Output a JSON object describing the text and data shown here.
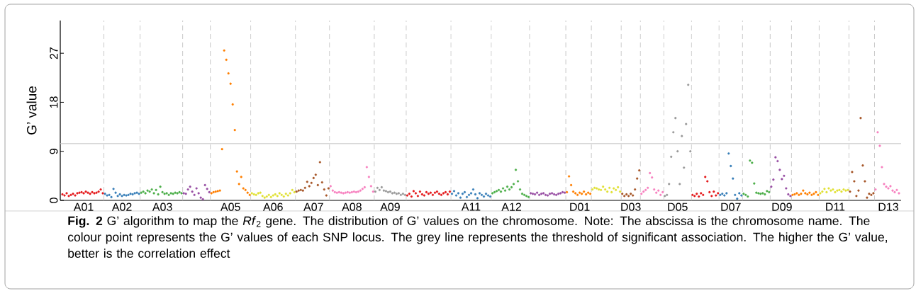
{
  "chart_data": {
    "type": "scatter",
    "ylabel": "G’ value",
    "grid": false,
    "ylim": [
      0,
      33
    ],
    "yticks": [
      0,
      9,
      18,
      27
    ],
    "categories": [
      null,
      null,
      null,
      null,
      null,
      null,
      null,
      null,
      null,
      null,
      "A01",
      null,
      null,
      null,
      null,
      null,
      null,
      null,
      null,
      null,
      null,
      null,
      null,
      null,
      null,
      null,
      null,
      null,
      "A02",
      null,
      null,
      null,
      null,
      null,
      null,
      null,
      null,
      null,
      null,
      null,
      null,
      null,
      null,
      null,
      null,
      null,
      null,
      "A03",
      null,
      null,
      null,
      null,
      null,
      null,
      null,
      null,
      null,
      null,
      null,
      null,
      null,
      null,
      null,
      null,
      null,
      null,
      null,
      null,
      null,
      null,
      null,
      null,
      null,
      null,
      null,
      null,
      null,
      null,
      null,
      "A05",
      null,
      null,
      null,
      null,
      null,
      null,
      null,
      null,
      null,
      null,
      null,
      null,
      null,
      null,
      null,
      null,
      null,
      null,
      null,
      "A06",
      null,
      null,
      null,
      null,
      null,
      null,
      null,
      null,
      null,
      null,
      null,
      null,
      null,
      null,
      null,
      null,
      null,
      null,
      "A07",
      null,
      null,
      null,
      null,
      null,
      null,
      null,
      null,
      null,
      null,
      null,
      null,
      null,
      null,
      null,
      null,
      null,
      "A08",
      null,
      null,
      null,
      null,
      null,
      null,
      null,
      null,
      null,
      null,
      null,
      null,
      null,
      null,
      null,
      null,
      null,
      "A09",
      null,
      null,
      null,
      null,
      null,
      null,
      null,
      null,
      null,
      null,
      null,
      null,
      null,
      null,
      null,
      null,
      null,
      null,
      null,
      null,
      null,
      null,
      null,
      null,
      null,
      null,
      null,
      null,
      null,
      null,
      null,
      null,
      null,
      null,
      null,
      null,
      null,
      "A11",
      null,
      null,
      null,
      null,
      null,
      null,
      null,
      null,
      null,
      null,
      null,
      null,
      null,
      null,
      null,
      null,
      null,
      null,
      "A12",
      null,
      null,
      null,
      null,
      null,
      null,
      null,
      null,
      null,
      null,
      null,
      null,
      null,
      null,
      null,
      null,
      null,
      null,
      null,
      null,
      null,
      null,
      null,
      null,
      null,
      null,
      null,
      null,
      null,
      null,
      null,
      "D01",
      null,
      null,
      null,
      null,
      null,
      null,
      null,
      null,
      null,
      null,
      null,
      null,
      null,
      null,
      null,
      null,
      null,
      null,
      null,
      null,
      null,
      null,
      null,
      "D03",
      null,
      null,
      null,
      null,
      null,
      null,
      null,
      null,
      null,
      null,
      null,
      null,
      null,
      null,
      null,
      null,
      null,
      null,
      null,
      null,
      null,
      "D05",
      null,
      null,
      null,
      null,
      null,
      null,
      null,
      null,
      null,
      null,
      null,
      null,
      null,
      null,
      null,
      null,
      null,
      null,
      null,
      null,
      null,
      null,
      null,
      null,
      "D07",
      null,
      null,
      null,
      null,
      null,
      null,
      null,
      null,
      null,
      null,
      null,
      null,
      null,
      null,
      null,
      null,
      null,
      null,
      null,
      null,
      null,
      null,
      null,
      "D09",
      null,
      null,
      null,
      null,
      null,
      null,
      null,
      null,
      null,
      null,
      null,
      null,
      null,
      null,
      null,
      null,
      null,
      null,
      null,
      null,
      null,
      null,
      null,
      null,
      "D11",
      null,
      null,
      null,
      null,
      null,
      null,
      null,
      null,
      null,
      null,
      null,
      null,
      null,
      null,
      null,
      null,
      null,
      null,
      null,
      null,
      null,
      null,
      null,
      null,
      "D13",
      null,
      null,
      null,
      null,
      null
    ],
    "ref_lines": [
      {
        "axis": "y",
        "value": 10.4,
        "color": "#c8c8c8",
        "line_style": "solid"
      }
    ],
    "values": [
      1.1,
      0.9,
      1.3,
      0.8,
      1.0,
      1.2,
      0.9,
      1.3,
      1.4,
      1.5,
      1.3,
      1.6,
      1.4,
      1.2,
      1.5,
      1.3,
      1.4,
      1.6,
      2.0,
      1.3,
      1.2,
      0.9,
      1.0,
      0.6,
      2.1,
      1.4,
      0.8,
      1.1,
      0.8,
      1.0,
      0.9,
      1.0,
      1.2,
      1.1,
      1.3,
      1.4,
      1.2,
      1.4,
      1.6,
      1.3,
      1.8,
      1.6,
      2.0,
      1.3,
      1.9,
      1.1,
      2.5,
      1.5,
      1.2,
      1.3,
      1.0,
      1.3,
      1.2,
      1.4,
      1.3,
      1.5,
      1.3,
      1.3,
      1.2,
      2.0,
      2.5,
      1.6,
      1.0,
      2.2,
      1.3,
      0.5,
      0.2,
      2.8,
      2.1,
      1.5,
      1.3,
      1.5,
      1.6,
      1.7,
      1.8,
      9.4,
      27.5,
      25.8,
      23.3,
      21.4,
      17.6,
      12.9,
      5.3,
      3.0,
      4.3,
      2.2,
      1.9,
      1.4,
      1.0,
      1.3,
      1.1,
      1.0,
      1.3,
      1.4,
      0.8,
      0.5,
      0.7,
      1.0,
      0.6,
      0.9,
      1.1,
      0.8,
      1.3,
      1.0,
      0.7,
      1.2,
      0.9,
      1.3,
      1.9,
      1.5,
      1.6,
      1.8,
      1.9,
      1.8,
      2.3,
      3.4,
      2.6,
      3.2,
      4.1,
      4.7,
      2.8,
      7.0,
      3.3,
      2.0,
      0.9,
      2.2,
      2.6,
      1.8,
      1.5,
      1.4,
      1.5,
      1.4,
      1.3,
      1.4,
      1.5,
      1.4,
      1.5,
      1.6,
      1.5,
      1.6,
      1.8,
      2.1,
      2.4,
      6.1,
      4.3,
      2.6,
      1.6,
      1.6,
      2.3,
      1.9,
      2.4,
      1.8,
      1.7,
      1.5,
      1.6,
      1.3,
      1.4,
      1.2,
      1.3,
      1.0,
      1.2,
      1.0,
      0.9,
      1.2,
      0.7,
      1.7,
      1.3,
      0.8,
      1.6,
      1.1,
      0.9,
      1.5,
      1.2,
      1.4,
      1.0,
      1.4,
      1.6,
      1.2,
      1.0,
      1.3,
      1.5,
      1.1,
      1.6,
      1.2,
      1.7,
      0.9,
      1.3,
      0.5,
      1.2,
      1.5,
      0.6,
      1.0,
      1.3,
      2.0,
      1.1,
      0.4,
      1.3,
      1.0,
      0.7,
      1.2,
      0.9,
      0.7,
      1.3,
      1.5,
      1.7,
      1.9,
      1.6,
      2.2,
      1.8,
      2.5,
      2.0,
      2.4,
      3.0,
      5.6,
      3.5,
      2.0,
      1.2,
      1.0,
      0.8,
      0.6,
      1.3,
      1.2,
      1.1,
      1.4,
      1.0,
      1.2,
      1.3,
      1.0,
      0.9,
      1.2,
      1.3,
      1.1,
      1.0,
      1.2,
      1.3,
      1.5,
      1.4,
      1.5,
      4.4,
      2.8,
      1.6,
      1.3,
      1.0,
      1.4,
      1.2,
      1.6,
      1.1,
      1.4,
      1.2,
      2.0,
      2.3,
      2.2,
      2.0,
      1.9,
      2.5,
      2.0,
      1.6,
      2.3,
      1.5,
      2.2,
      1.9,
      2.4,
      1.6,
      1.2,
      0.8,
      1.1,
      0.8,
      1.2,
      0.9,
      2.0,
      4.0,
      5.5,
      1.2,
      1.6,
      1.9,
      2.3,
      5.0,
      4.2,
      2.0,
      1.4,
      1.8,
      1.0,
      1.5,
      0.8,
      1.0,
      3.0,
      8.0,
      12.5,
      15.1,
      9.0,
      3.0,
      11.8,
      6.0,
      14.0,
      21.2,
      9.0,
      1.0,
      0.8,
      1.2,
      0.7,
      1.3,
      1.0,
      4.3,
      3.5,
      1.5,
      0.8,
      1.6,
      0.9,
      1.3,
      1.0,
      1.2,
      0.9,
      1.3,
      8.6,
      6.3,
      4.0,
      1.0,
      0.3,
      1.3,
      0.9,
      1.2,
      1.0,
      0.7,
      7.3,
      6.9,
      3.1,
      1.4,
      1.3,
      1.2,
      1.3,
      1.1,
      1.7,
      1.5,
      2.5,
      3.8,
      7.9,
      7.2,
      5.6,
      3.9,
      4.5,
      2.2,
      1.1,
      0.8,
      1.0,
      1.1,
      1.3,
      1.0,
      1.2,
      1.8,
      1.3,
      1.1,
      1.4,
      1.0,
      1.2,
      1.5,
      1.0,
      1.3,
      1.6,
      2.1,
      1.5,
      2.2,
      1.8,
      2.0,
      1.5,
      1.8,
      1.9,
      1.6,
      2.0,
      1.8,
      1.9,
      1.6,
      5.2,
      3.5,
      0.8,
      1.8,
      15.1,
      6.4,
      3.5,
      0.5,
      1.2,
      1.0,
      1.3,
      2.0,
      12.5,
      10.0,
      6.1,
      3.0,
      2.5,
      2.2,
      2.6,
      1.8,
      1.5,
      1.9,
      1.3
    ],
    "colors": [
      "#e41a1c",
      "#e41a1c",
      "#e41a1c",
      "#e41a1c",
      "#e41a1c",
      "#e41a1c",
      "#e41a1c",
      "#e41a1c",
      "#e41a1c",
      "#e41a1c",
      "#e41a1c",
      "#e41a1c",
      "#e41a1c",
      "#e41a1c",
      "#e41a1c",
      "#e41a1c",
      "#e41a1c",
      "#e41a1c",
      "#e41a1c",
      "#e41a1c",
      "#377eb8",
      "#377eb8",
      "#377eb8",
      "#377eb8",
      "#377eb8",
      "#377eb8",
      "#377eb8",
      "#377eb8",
      "#377eb8",
      "#377eb8",
      "#377eb8",
      "#377eb8",
      "#377eb8",
      "#377eb8",
      "#377eb8",
      "#377eb8",
      "#377eb8",
      "#4daf4a",
      "#4daf4a",
      "#4daf4a",
      "#4daf4a",
      "#4daf4a",
      "#4daf4a",
      "#4daf4a",
      "#4daf4a",
      "#4daf4a",
      "#4daf4a",
      "#4daf4a",
      "#4daf4a",
      "#4daf4a",
      "#4daf4a",
      "#4daf4a",
      "#4daf4a",
      "#4daf4a",
      "#4daf4a",
      "#4daf4a",
      "#4daf4a",
      "#984ea3",
      "#984ea3",
      "#984ea3",
      "#984ea3",
      "#984ea3",
      "#984ea3",
      "#984ea3",
      "#984ea3",
      "#984ea3",
      "#984ea3",
      "#984ea3",
      "#984ea3",
      "#984ea3",
      "#ff7f00",
      "#ff7f00",
      "#ff7f00",
      "#ff7f00",
      "#ff7f00",
      "#ff7f00",
      "#ff7f00",
      "#ff7f00",
      "#ff7f00",
      "#ff7f00",
      "#ff7f00",
      "#ff7f00",
      "#ff7f00",
      "#ff7f00",
      "#ff7f00",
      "#ff7f00",
      "#ff7f00",
      "#ff7f00",
      "#ff7f00",
      "#e0e034",
      "#e0e034",
      "#e0e034",
      "#e0e034",
      "#e0e034",
      "#e0e034",
      "#e0e034",
      "#e0e034",
      "#e0e034",
      "#e0e034",
      "#e0e034",
      "#e0e034",
      "#e0e034",
      "#e0e034",
      "#e0e034",
      "#e0e034",
      "#e0e034",
      "#e0e034",
      "#e0e034",
      "#e0e034",
      "#e0e034",
      "#a65628",
      "#a65628",
      "#a65628",
      "#a65628",
      "#a65628",
      "#a65628",
      "#a65628",
      "#a65628",
      "#a65628",
      "#a65628",
      "#a65628",
      "#a65628",
      "#a65628",
      "#a65628",
      "#a65628",
      "#a65628",
      "#f781bf",
      "#f781bf",
      "#f781bf",
      "#f781bf",
      "#f781bf",
      "#f781bf",
      "#f781bf",
      "#f781bf",
      "#f781bf",
      "#f781bf",
      "#f781bf",
      "#f781bf",
      "#f781bf",
      "#f781bf",
      "#f781bf",
      "#f781bf",
      "#f781bf",
      "#f781bf",
      "#f781bf",
      "#f781bf",
      "#f781bf",
      "#999999",
      "#999999",
      "#999999",
      "#999999",
      "#999999",
      "#999999",
      "#999999",
      "#999999",
      "#999999",
      "#999999",
      "#999999",
      "#999999",
      "#999999",
      "#999999",
      "#999999",
      "#e41a1c",
      "#e41a1c",
      "#e41a1c",
      "#e41a1c",
      "#e41a1c",
      "#e41a1c",
      "#e41a1c",
      "#e41a1c",
      "#e41a1c",
      "#e41a1c",
      "#e41a1c",
      "#e41a1c",
      "#e41a1c",
      "#e41a1c",
      "#e41a1c",
      "#e41a1c",
      "#e41a1c",
      "#e41a1c",
      "#e41a1c",
      "#e41a1c",
      "#e41a1c",
      "#377eb8",
      "#377eb8",
      "#377eb8",
      "#377eb8",
      "#377eb8",
      "#377eb8",
      "#377eb8",
      "#377eb8",
      "#377eb8",
      "#377eb8",
      "#377eb8",
      "#377eb8",
      "#377eb8",
      "#377eb8",
      "#377eb8",
      "#377eb8",
      "#377eb8",
      "#377eb8",
      "#377eb8",
      "#4daf4a",
      "#4daf4a",
      "#4daf4a",
      "#4daf4a",
      "#4daf4a",
      "#4daf4a",
      "#4daf4a",
      "#4daf4a",
      "#4daf4a",
      "#4daf4a",
      "#4daf4a",
      "#4daf4a",
      "#4daf4a",
      "#4daf4a",
      "#4daf4a",
      "#4daf4a",
      "#4daf4a",
      "#4daf4a",
      "#984ea3",
      "#984ea3",
      "#984ea3",
      "#984ea3",
      "#984ea3",
      "#984ea3",
      "#984ea3",
      "#984ea3",
      "#984ea3",
      "#984ea3",
      "#984ea3",
      "#984ea3",
      "#984ea3",
      "#984ea3",
      "#984ea3",
      "#984ea3",
      "#984ea3",
      "#ff7f00",
      "#ff7f00",
      "#ff7f00",
      "#ff7f00",
      "#ff7f00",
      "#ff7f00",
      "#ff7f00",
      "#ff7f00",
      "#ff7f00",
      "#ff7f00",
      "#ff7f00",
      "#ff7f00",
      "#e0e034",
      "#e0e034",
      "#e0e034",
      "#e0e034",
      "#e0e034",
      "#e0e034",
      "#e0e034",
      "#e0e034",
      "#e0e034",
      "#e0e034",
      "#e0e034",
      "#e0e034",
      "#e0e034",
      "#e0e034",
      "#a65628",
      "#a65628",
      "#a65628",
      "#a65628",
      "#a65628",
      "#a65628",
      "#a65628",
      "#a65628",
      "#a65628",
      "#f781bf",
      "#f781bf",
      "#f781bf",
      "#f781bf",
      "#f781bf",
      "#f781bf",
      "#f781bf",
      "#f781bf",
      "#f781bf",
      "#f781bf",
      "#f781bf",
      "#999999",
      "#999999",
      "#999999",
      "#999999",
      "#999999",
      "#999999",
      "#999999",
      "#999999",
      "#999999",
      "#999999",
      "#999999",
      "#999999",
      "#999999",
      "#e41a1c",
      "#e41a1c",
      "#e41a1c",
      "#e41a1c",
      "#e41a1c",
      "#e41a1c",
      "#e41a1c",
      "#e41a1c",
      "#e41a1c",
      "#e41a1c",
      "#e41a1c",
      "#e41a1c",
      "#e41a1c",
      "#377eb8",
      "#377eb8",
      "#377eb8",
      "#377eb8",
      "#377eb8",
      "#377eb8",
      "#377eb8",
      "#377eb8",
      "#377eb8",
      "#377eb8",
      "#377eb8",
      "#4daf4a",
      "#4daf4a",
      "#4daf4a",
      "#4daf4a",
      "#4daf4a",
      "#4daf4a",
      "#4daf4a",
      "#4daf4a",
      "#4daf4a",
      "#4daf4a",
      "#4daf4a",
      "#4daf4a",
      "#4daf4a",
      "#984ea3",
      "#984ea3",
      "#984ea3",
      "#984ea3",
      "#984ea3",
      "#984ea3",
      "#984ea3",
      "#984ea3",
      "#984ea3",
      "#984ea3",
      "#ff7f00",
      "#ff7f00",
      "#ff7f00",
      "#ff7f00",
      "#ff7f00",
      "#ff7f00",
      "#ff7f00",
      "#ff7f00",
      "#ff7f00",
      "#ff7f00",
      "#ff7f00",
      "#ff7f00",
      "#ff7f00",
      "#e0e034",
      "#e0e034",
      "#e0e034",
      "#e0e034",
      "#e0e034",
      "#e0e034",
      "#e0e034",
      "#e0e034",
      "#e0e034",
      "#e0e034",
      "#e0e034",
      "#e0e034",
      "#e0e034",
      "#e0e034",
      "#a65628",
      "#a65628",
      "#a65628",
      "#a65628",
      "#a65628",
      "#a65628",
      "#a65628",
      "#a65628",
      "#a65628",
      "#a65628",
      "#a65628",
      "#a65628",
      "#f781bf",
      "#f781bf",
      "#f781bf",
      "#f781bf",
      "#f781bf",
      "#f781bf",
      "#f781bf",
      "#f781bf",
      "#f781bf",
      "#f781bf",
      "#f781bf",
      "#f781bf"
    ],
    "annotations": [
      "**Fig. 2** G’ algorithm to map the *Rf*$_{2}$ gene. The distribution of G’ values on the chromosome. Note: The abscissa is the chromosome name. The colour point represents the G’ values of each SNP locus. The grey line represents the threshold of significant association. The higher the G’ value, better is the correlation effect"
    ]
  }
}
